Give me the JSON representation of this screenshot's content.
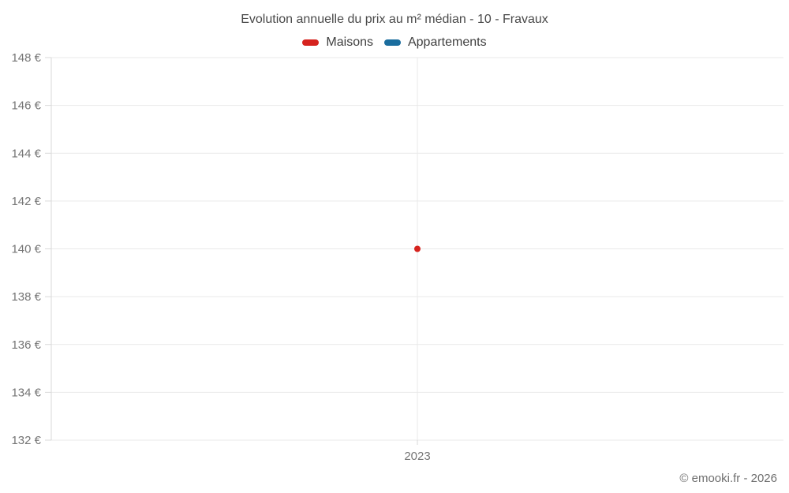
{
  "title": "Evolution annuelle du prix au m² médian - 10 - Fravaux",
  "legend": [
    {
      "label": "Maisons",
      "color": "#d6231e"
    },
    {
      "label": "Appartements",
      "color": "#1a6d9e"
    }
  ],
  "footer": "© emooki.fr - 2026",
  "chart_data": {
    "type": "scatter",
    "title": "Evolution annuelle du prix au m² médian - 10 - Fravaux",
    "categories": [
      "2023"
    ],
    "series": [
      {
        "name": "Maisons",
        "color": "#d6231e",
        "values": [
          140
        ]
      },
      {
        "name": "Appartements",
        "color": "#1a6d9e",
        "values": [
          null
        ]
      }
    ],
    "ylim": [
      132,
      148
    ],
    "ytick_step": 2,
    "ytick_suffix": " €",
    "grid": true,
    "legend_position": "top",
    "xlabel": "",
    "ylabel": ""
  },
  "colors": {
    "grid": "#e9e9e9",
    "axis": "#d9d9d9",
    "tick_text": "#757575"
  }
}
